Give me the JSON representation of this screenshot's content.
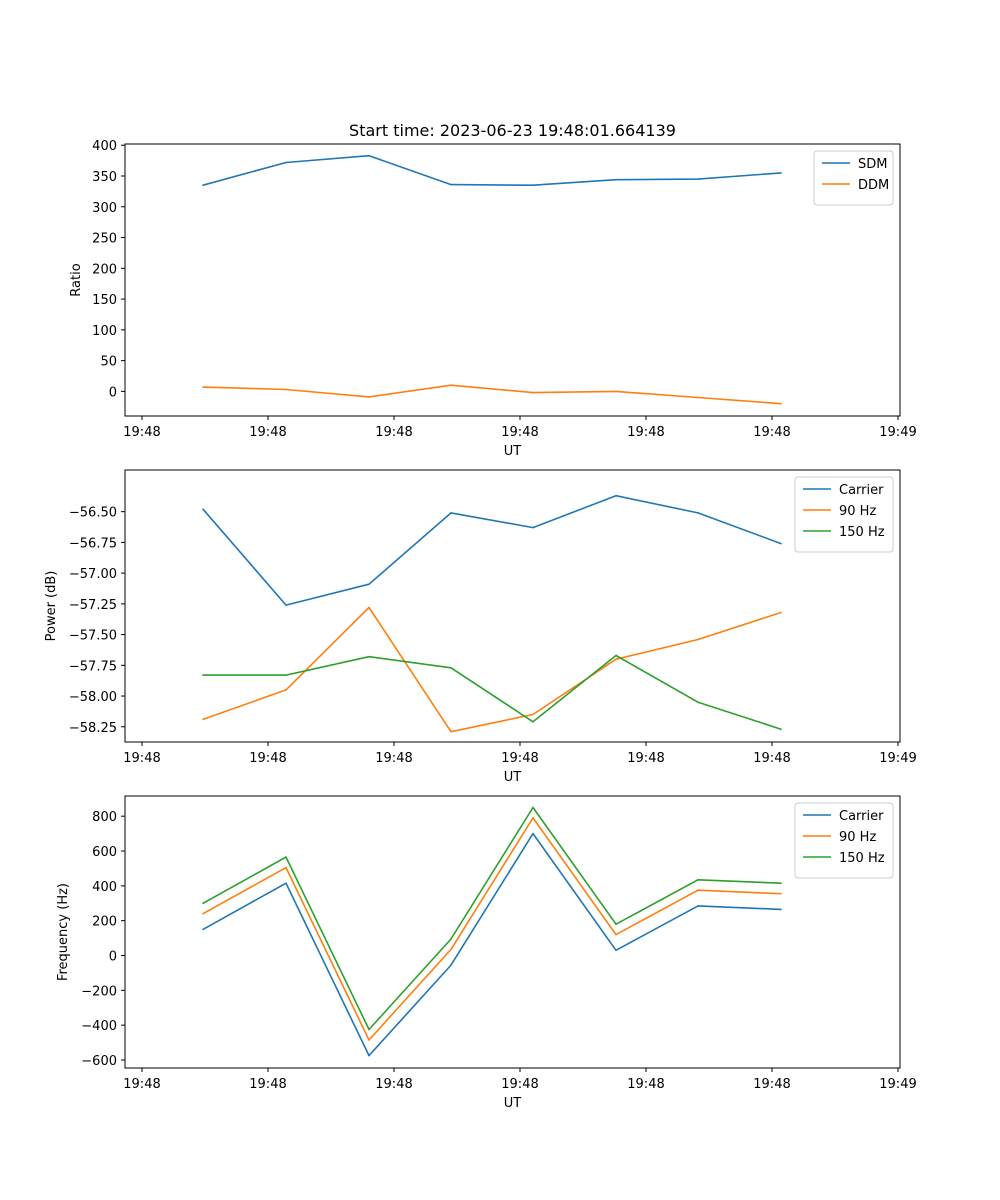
{
  "title": "Start time: 2023-06-23 19:48:01.664139",
  "colors": {
    "blue": "#1f77b4",
    "orange": "#ff7f0e",
    "green": "#2ca02c"
  },
  "chart_data": [
    {
      "type": "line",
      "ylabel": "Ratio",
      "xlabel": "UT",
      "x_tick_labels": [
        "19:48",
        "19:48",
        "19:48",
        "19:48",
        "19:48",
        "19:48",
        "19:49"
      ],
      "y_ticks": [
        0,
        50,
        100,
        150,
        200,
        250,
        300,
        350,
        400
      ],
      "y_tick_labels": [
        "0",
        "50",
        "100",
        "150",
        "200",
        "250",
        "300",
        "350",
        "400"
      ],
      "ylim": [
        -40,
        402
      ],
      "legend_position": "top-right",
      "x": [
        0,
        1,
        2,
        3,
        4,
        5,
        6,
        7
      ],
      "series": [
        {
          "name": "SDM",
          "color": "#1f77b4",
          "values": [
            335,
            372,
            383,
            336,
            335,
            344,
            345,
            355
          ]
        },
        {
          "name": "DDM",
          "color": "#ff7f0e",
          "values": [
            7,
            3,
            -9,
            10,
            -2,
            0,
            -10,
            -20
          ]
        }
      ]
    },
    {
      "type": "line",
      "ylabel": "Power (dB)",
      "xlabel": "UT",
      "x_tick_labels": [
        "19:48",
        "19:48",
        "19:48",
        "19:48",
        "19:48",
        "19:48",
        "19:49"
      ],
      "y_ticks": [
        -58.25,
        -58.0,
        -57.75,
        -57.5,
        -57.25,
        -57.0,
        -56.75,
        -56.5
      ],
      "y_tick_labels": [
        "−58.25",
        "−58.00",
        "−57.75",
        "−57.50",
        "−57.25",
        "−57.00",
        "−56.75",
        "−56.50"
      ],
      "ylim": [
        -58.374,
        -56.161
      ],
      "legend_position": "top-right",
      "x": [
        0,
        1,
        2,
        3,
        4,
        5,
        6,
        7
      ],
      "series": [
        {
          "name": "Carrier",
          "color": "#1f77b4",
          "values": [
            -56.48,
            -57.26,
            -57.09,
            -56.51,
            -56.63,
            -56.37,
            -56.51,
            -56.76
          ]
        },
        {
          "name": "90 Hz",
          "color": "#ff7f0e",
          "values": [
            -58.19,
            -57.95,
            -57.28,
            -58.29,
            -58.15,
            -57.7,
            -57.54,
            -57.32
          ]
        },
        {
          "name": "150 Hz",
          "color": "#2ca02c",
          "values": [
            -57.83,
            -57.83,
            -57.68,
            -57.77,
            -58.21,
            -57.67,
            -58.05,
            -58.27
          ]
        }
      ]
    },
    {
      "type": "line",
      "ylabel": "Frequency (Hz)",
      "xlabel": "UT",
      "x_tick_labels": [
        "19:48",
        "19:48",
        "19:48",
        "19:48",
        "19:48",
        "19:48",
        "19:49"
      ],
      "y_ticks": [
        -600,
        -400,
        -200,
        0,
        200,
        400,
        600,
        800
      ],
      "y_tick_labels": [
        "−600",
        "−400",
        "−200",
        "0",
        "200",
        "400",
        "600",
        "800"
      ],
      "ylim": [
        -646,
        916
      ],
      "legend_position": "top-right",
      "x": [
        0,
        1,
        2,
        3,
        4,
        5,
        6,
        7
      ],
      "series": [
        {
          "name": "Carrier",
          "color": "#1f77b4",
          "values": [
            150,
            415,
            -575,
            -55,
            700,
            30,
            285,
            265
          ]
        },
        {
          "name": "90 Hz",
          "color": "#ff7f0e",
          "values": [
            240,
            505,
            -485,
            35,
            790,
            120,
            375,
            355
          ]
        },
        {
          "name": "150 Hz",
          "color": "#2ca02c",
          "values": [
            300,
            565,
            -425,
            95,
            850,
            180,
            435,
            415
          ]
        }
      ]
    }
  ]
}
